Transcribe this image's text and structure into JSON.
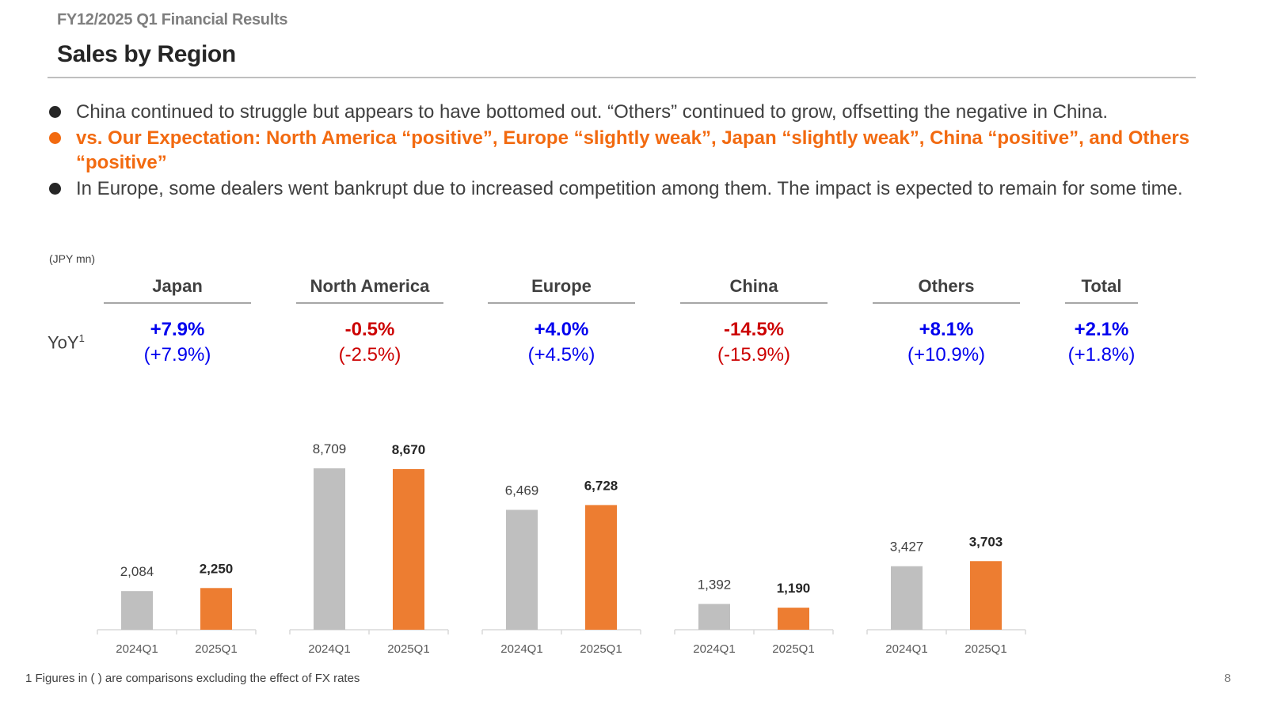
{
  "header": {
    "supertitle": "FY12/2025 Q1 Financial Results",
    "title": "Sales by Region"
  },
  "bullets": [
    {
      "text": "China continued to struggle but appears to have bottomed out. “Others” continued to grow, offsetting the negative in China.",
      "highlight": false
    },
    {
      "text": "vs. Our Expectation: North America “positive”, Europe “slightly weak”, Japan “slightly weak”, China “positive”, and Others “positive”",
      "highlight": true
    },
    {
      "text": "In Europe, some dealers went bankrupt due to increased competition among them. The impact is expected to remain for some time.",
      "highlight": false
    }
  ],
  "unit": "(JPY mn)",
  "yoy_label": "YoY",
  "yoy_footnote_mark": "1",
  "regions": [
    {
      "name": "Japan",
      "yoy": "+7.9%",
      "yoy_ex_fx": "(+7.9%)",
      "trend": "positive"
    },
    {
      "name": "North America",
      "yoy": "-0.5%",
      "yoy_ex_fx": "(-2.5%)",
      "trend": "negative"
    },
    {
      "name": "Europe",
      "yoy": "+4.0%",
      "yoy_ex_fx": "(+4.5%)",
      "trend": "positive"
    },
    {
      "name": "China",
      "yoy": "-14.5%",
      "yoy_ex_fx": "(-15.9%)",
      "trend": "negative"
    },
    {
      "name": "Others",
      "yoy": "+8.1%",
      "yoy_ex_fx": "(+10.9%)",
      "trend": "positive"
    },
    {
      "name": "Total",
      "yoy": "+2.1%",
      "yoy_ex_fx": "(+1.8%)",
      "trend": "positive"
    }
  ],
  "colors": {
    "prior_year": "#bfbfbf",
    "current_year": "#ed7d31",
    "positive": "#0000ee",
    "negative": "#cc0000",
    "highlight": "#f26a10"
  },
  "chart_data": {
    "type": "bar",
    "unit": "JPY mn",
    "groups": [
      {
        "region": "Japan",
        "categories": [
          "2024Q1",
          "2025Q1"
        ],
        "values": [
          2084,
          2250
        ],
        "labels": [
          "2,084",
          "2,250"
        ]
      },
      {
        "region": "North America",
        "categories": [
          "2024Q1",
          "2025Q1"
        ],
        "values": [
          8709,
          8670
        ],
        "labels": [
          "8,709",
          "8,670"
        ]
      },
      {
        "region": "Europe",
        "categories": [
          "2024Q1",
          "2025Q1"
        ],
        "values": [
          6469,
          6728
        ],
        "labels": [
          "6,469",
          "6,728"
        ]
      },
      {
        "region": "China",
        "categories": [
          "2024Q1",
          "2025Q1"
        ],
        "values": [
          1392,
          1190
        ],
        "labels": [
          "1,392",
          "1,190"
        ]
      },
      {
        "region": "Others",
        "categories": [
          "2024Q1",
          "2025Q1"
        ],
        "values": [
          3427,
          3703
        ],
        "labels": [
          "3,427",
          "3,703"
        ]
      }
    ],
    "grid": false,
    "legend": "none"
  },
  "footnote": "1 Figures in ( ) are comparisons excluding the effect of FX rates",
  "page_number": "8"
}
